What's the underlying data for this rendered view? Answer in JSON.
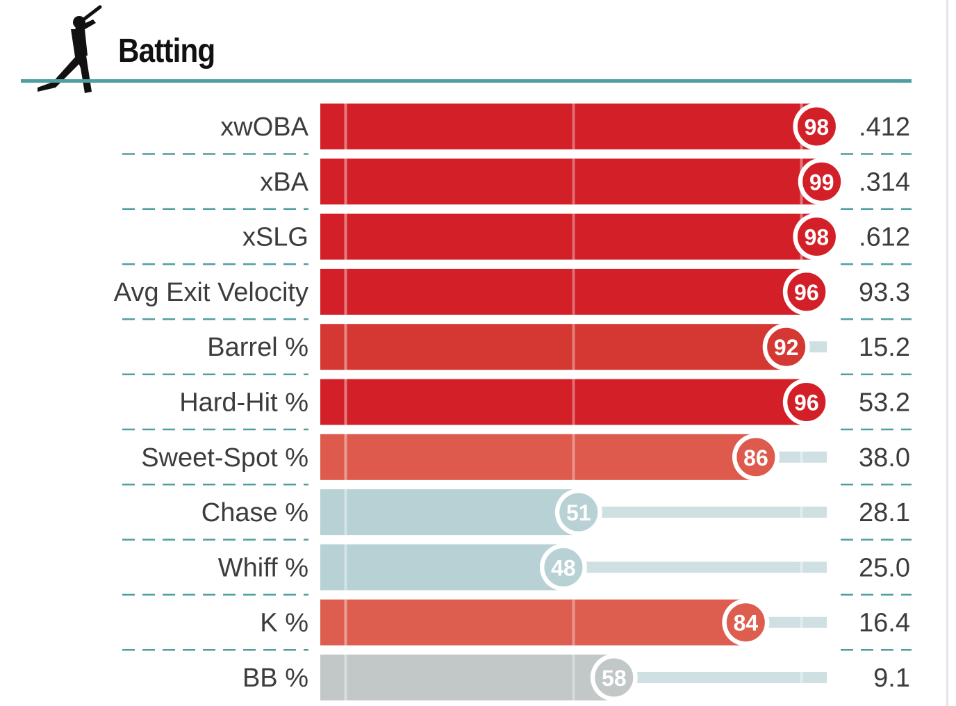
{
  "section": {
    "title": "Batting",
    "icon": "batter-silhouette-icon"
  },
  "colors": {
    "accent_rule": "#4f9ea0",
    "dashes": "#4f9ea0",
    "track": "#cfe0e2",
    "gridline": "#ffffff",
    "scale": [
      "#b7d1d4",
      "#d8e1e3",
      "#f2c2b8",
      "#e46e5e",
      "#d53d3b",
      "#d31f27"
    ],
    "neutral_gray": "#c2c7c7"
  },
  "chart_data": {
    "type": "bar",
    "orientation": "horizontal",
    "description_scale": "percentile rank",
    "xlim": [
      0,
      100
    ],
    "gridlines_at": [
      5,
      50,
      95
    ],
    "categories": [
      "xwOBA",
      "xBA",
      "xSLG",
      "Avg Exit Velocity",
      "Barrel %",
      "Hard-Hit %",
      "Sweet-Spot %",
      "Chase %",
      "Whiff %",
      "K %",
      "BB %"
    ],
    "percentiles": [
      98,
      99,
      98,
      96,
      92,
      96,
      86,
      51,
      48,
      84,
      58
    ],
    "values": [
      ".412",
      ".314",
      ".612",
      "93.3",
      "15.2",
      "53.2",
      "38.0",
      "28.1",
      "25.0",
      "16.4",
      "9.1"
    ],
    "bar_colors": [
      "#d31f27",
      "#d31f27",
      "#d31f27",
      "#d31f27",
      "#d53832",
      "#d31f27",
      "#dd5a4c",
      "#b7d1d4",
      "#b7d1d4",
      "#dd5e4f",
      "#c2c7c7"
    ]
  }
}
